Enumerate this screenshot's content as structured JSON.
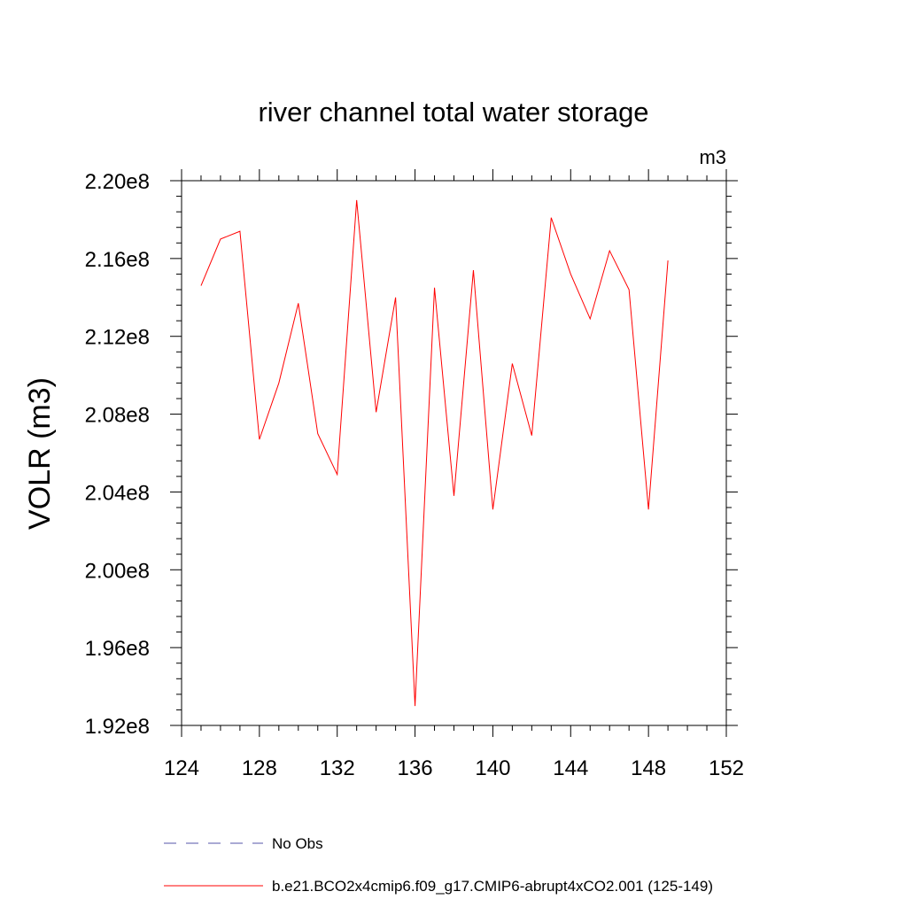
{
  "chart_data": {
    "type": "line",
    "title": "river channel total water storage",
    "units": "m3",
    "xlabel": "",
    "ylabel": "VOLR  (m3)",
    "xlim": [
      124,
      152
    ],
    "ylim": [
      192000000,
      220000000
    ],
    "x_ticks": [
      "124",
      "128",
      "132",
      "136",
      "140",
      "144",
      "148",
      "152"
    ],
    "y_ticks": [
      "1.92e8",
      "1.96e8",
      "2.00e8",
      "2.04e8",
      "2.08e8",
      "2.12e8",
      "2.16e8",
      "2.20e8"
    ],
    "grid": false,
    "legend_position": "bottom",
    "series": [
      {
        "name": "b.e21.BCO2x4cmip6.f09_g17.CMIP6-abrupt4xCO2.001 (125-149)",
        "color": "#ff0000",
        "dash": "solid",
        "x": [
          125,
          126,
          127,
          128,
          129,
          130,
          131,
          132,
          133,
          134,
          135,
          136,
          137,
          138,
          139,
          140,
          141,
          142,
          143,
          144,
          145,
          146,
          147,
          148,
          149
        ],
        "y": [
          214600000,
          217000000,
          217400000,
          206700000,
          209600000,
          213700000,
          207000000,
          204900000,
          219000000,
          208100000,
          214000000,
          193000000,
          214500000,
          203800000,
          215400000,
          203100000,
          210600000,
          206900000,
          218100000,
          215200000,
          212900000,
          216400000,
          214400000,
          203100000,
          215900000
        ]
      }
    ],
    "legend": [
      {
        "label": "No Obs",
        "color": "#5555aa",
        "dash": "dashed"
      },
      {
        "label": "b.e21.BCO2x4cmip6.f09_g17.CMIP6-abrupt4xCO2.001 (125-149)",
        "color": "#ff0000",
        "dash": "solid"
      }
    ]
  }
}
